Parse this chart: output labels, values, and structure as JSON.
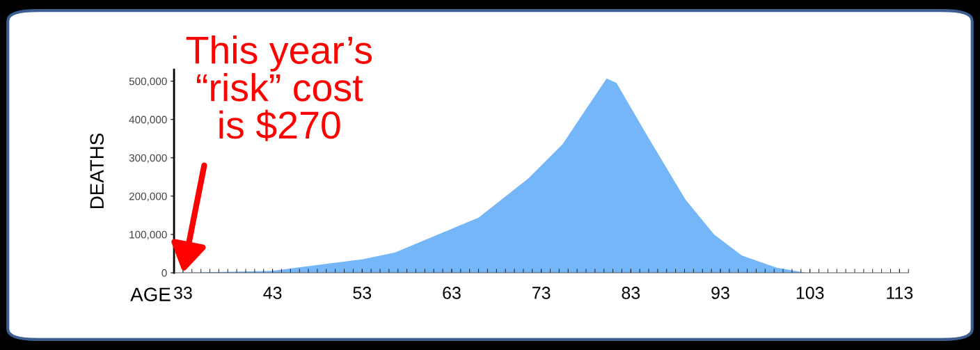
{
  "chart_data": {
    "type": "area",
    "xlabel": "AGE",
    "ylabel": "DEATHS",
    "x": [
      33,
      43,
      47.3,
      53,
      56.7,
      66,
      71.5,
      75.4,
      78,
      80.3,
      81.4,
      84.9,
      89.1,
      92.3,
      95.4,
      99.3,
      102.6,
      113
    ],
    "series": [
      {
        "color": "#74b6f7",
        "values": [
          0,
          5000,
          18000,
          35000,
          53000,
          144000,
          245000,
          336000,
          427000,
          507000,
          495000,
          355000,
          191000,
          100000,
          45000,
          13000,
          0,
          0
        ]
      }
    ],
    "xlim": [
      32,
      114
    ],
    "xticks": [
      33,
      43,
      53,
      63,
      73,
      83,
      93,
      103,
      113
    ],
    "ylim": [
      0,
      530000
    ],
    "yticks": [
      {
        "value": 0,
        "label": "0"
      },
      {
        "value": 100000,
        "label": "100,000"
      },
      {
        "value": 200000,
        "label": "200,000"
      },
      {
        "value": 300000,
        "label": "300,000"
      },
      {
        "value": 400000,
        "label": "400,000"
      },
      {
        "value": 500000,
        "label": "500,000"
      }
    ],
    "annotations": [
      {
        "text": "This year’s\n“risk” cost\nis $270",
        "x": 33,
        "y": 0
      }
    ]
  }
}
